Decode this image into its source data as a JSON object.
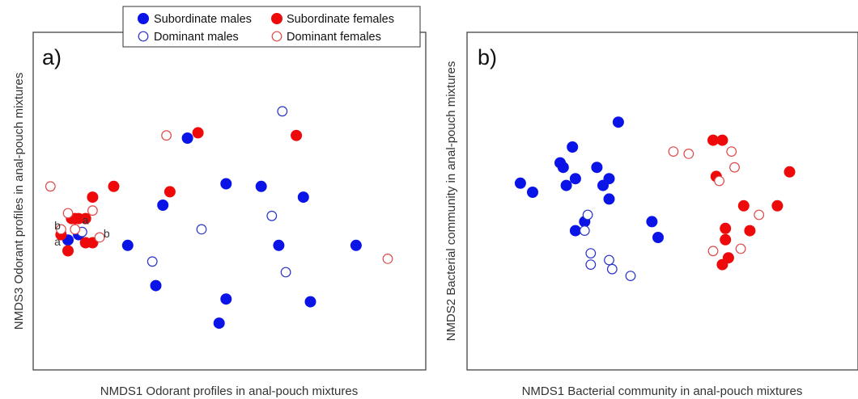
{
  "legend": [
    {
      "label": "Subordinate males",
      "color": "#0a14e6",
      "filled": true
    },
    {
      "label": "Subordinate females",
      "color": "#ee0a0a",
      "filled": true
    },
    {
      "label": "Dominant males",
      "color": "#2a33c8",
      "filled": false
    },
    {
      "label": "Dominant females",
      "color": "#e04a4a",
      "filled": false
    }
  ],
  "chart_data": [
    {
      "type": "scatter",
      "panel_label": "a)",
      "xlabel": "NMDS1 Odorant profiles in anal-pouch mixtures",
      "ylabel": "NMDS3 Odorant profiles in anal-pouch mixtures",
      "xlim": [
        0,
        100
      ],
      "ylim": [
        0,
        100
      ],
      "grid": false,
      "legend_position": "top-center",
      "series": [
        {
          "name": "Subordinate males",
          "color": "#0a14e6",
          "filled": true,
          "points": [
            [
              40,
              78
            ],
            [
              51,
              61
            ],
            [
              61,
              60
            ],
            [
              73,
              56
            ],
            [
              33,
              53
            ],
            [
              23,
              38
            ],
            [
              66,
              38
            ],
            [
              88,
              38
            ],
            [
              9,
              42
            ],
            [
              6,
              40
            ],
            [
              31,
              23
            ],
            [
              51,
              18
            ],
            [
              75,
              17
            ],
            [
              49,
              9
            ]
          ]
        },
        {
          "name": "Subordinate females",
          "color": "#ee0a0a",
          "filled": true,
          "points": [
            [
              43,
              80
            ],
            [
              71,
              79
            ],
            [
              19,
              60
            ],
            [
              13,
              56
            ],
            [
              35,
              58
            ],
            [
              9,
              48
            ],
            [
              7,
              48
            ],
            [
              11,
              48
            ],
            [
              8,
              48
            ],
            [
              4,
              42
            ],
            [
              11,
              39
            ],
            [
              13,
              39
            ],
            [
              6,
              36
            ]
          ]
        },
        {
          "name": "Dominant males",
          "color": "#2a33c8",
          "filled": false,
          "points": [
            [
              67,
              88
            ],
            [
              64,
              49
            ],
            [
              44,
              44
            ],
            [
              10,
              43
            ],
            [
              30,
              32
            ],
            [
              68,
              28
            ]
          ]
        },
        {
          "name": "Dominant females",
          "color": "#e04a4a",
          "filled": false,
          "points": [
            [
              34,
              79
            ],
            [
              1,
              60
            ],
            [
              13,
              51
            ],
            [
              6,
              50
            ],
            [
              8,
              44
            ],
            [
              4,
              44
            ],
            [
              15,
              41
            ],
            [
              97,
              33
            ]
          ]
        }
      ],
      "annotations": [
        {
          "text": "b",
          "x": 3,
          "y": 44
        },
        {
          "text": "a",
          "x": 11,
          "y": 46
        },
        {
          "text": "b",
          "x": 17,
          "y": 41
        },
        {
          "text": "a",
          "x": 3,
          "y": 38
        }
      ]
    },
    {
      "type": "scatter",
      "panel_label": "b)",
      "xlabel": "NMDS1 Bacterial community in anal-pouch mixtures",
      "ylabel": "NMDS2 Bacterial community in anal-pouch mixtures",
      "xlim": [
        0,
        100
      ],
      "ylim": [
        0,
        100
      ],
      "grid": false,
      "legend_position": "none",
      "series": [
        {
          "name": "Subordinate males",
          "color": "#0a14e6",
          "filled": true,
          "points": [
            [
              37,
              86
            ],
            [
              22,
              75
            ],
            [
              18,
              68
            ],
            [
              19,
              66
            ],
            [
              30,
              66
            ],
            [
              23,
              61
            ],
            [
              34,
              61
            ],
            [
              5,
              59
            ],
            [
              20,
              58
            ],
            [
              32,
              58
            ],
            [
              9,
              55
            ],
            [
              34,
              52
            ],
            [
              26,
              42
            ],
            [
              48,
              42
            ],
            [
              23,
              38
            ],
            [
              50,
              35
            ]
          ]
        },
        {
          "name": "Subordinate females",
          "color": "#ee0a0a",
          "filled": true,
          "points": [
            [
              68,
              78
            ],
            [
              71,
              78
            ],
            [
              69,
              62
            ],
            [
              93,
              64
            ],
            [
              78,
              49
            ],
            [
              89,
              49
            ],
            [
              72,
              39
            ],
            [
              80,
              38
            ],
            [
              72,
              34
            ],
            [
              73,
              26
            ],
            [
              71,
              23
            ]
          ]
        },
        {
          "name": "Dominant males",
          "color": "#2a33c8",
          "filled": false,
          "points": [
            [
              27,
              45
            ],
            [
              26,
              38
            ],
            [
              34,
              25
            ],
            [
              28,
              28
            ],
            [
              28,
              23
            ],
            [
              35,
              21
            ],
            [
              41,
              18
            ]
          ]
        },
        {
          "name": "Dominant females",
          "color": "#e04a4a",
          "filled": false,
          "points": [
            [
              55,
              73
            ],
            [
              60,
              72
            ],
            [
              74,
              73
            ],
            [
              75,
              66
            ],
            [
              70,
              60
            ],
            [
              83,
              45
            ],
            [
              77,
              30
            ],
            [
              68,
              29
            ]
          ]
        }
      ],
      "annotations": []
    }
  ]
}
